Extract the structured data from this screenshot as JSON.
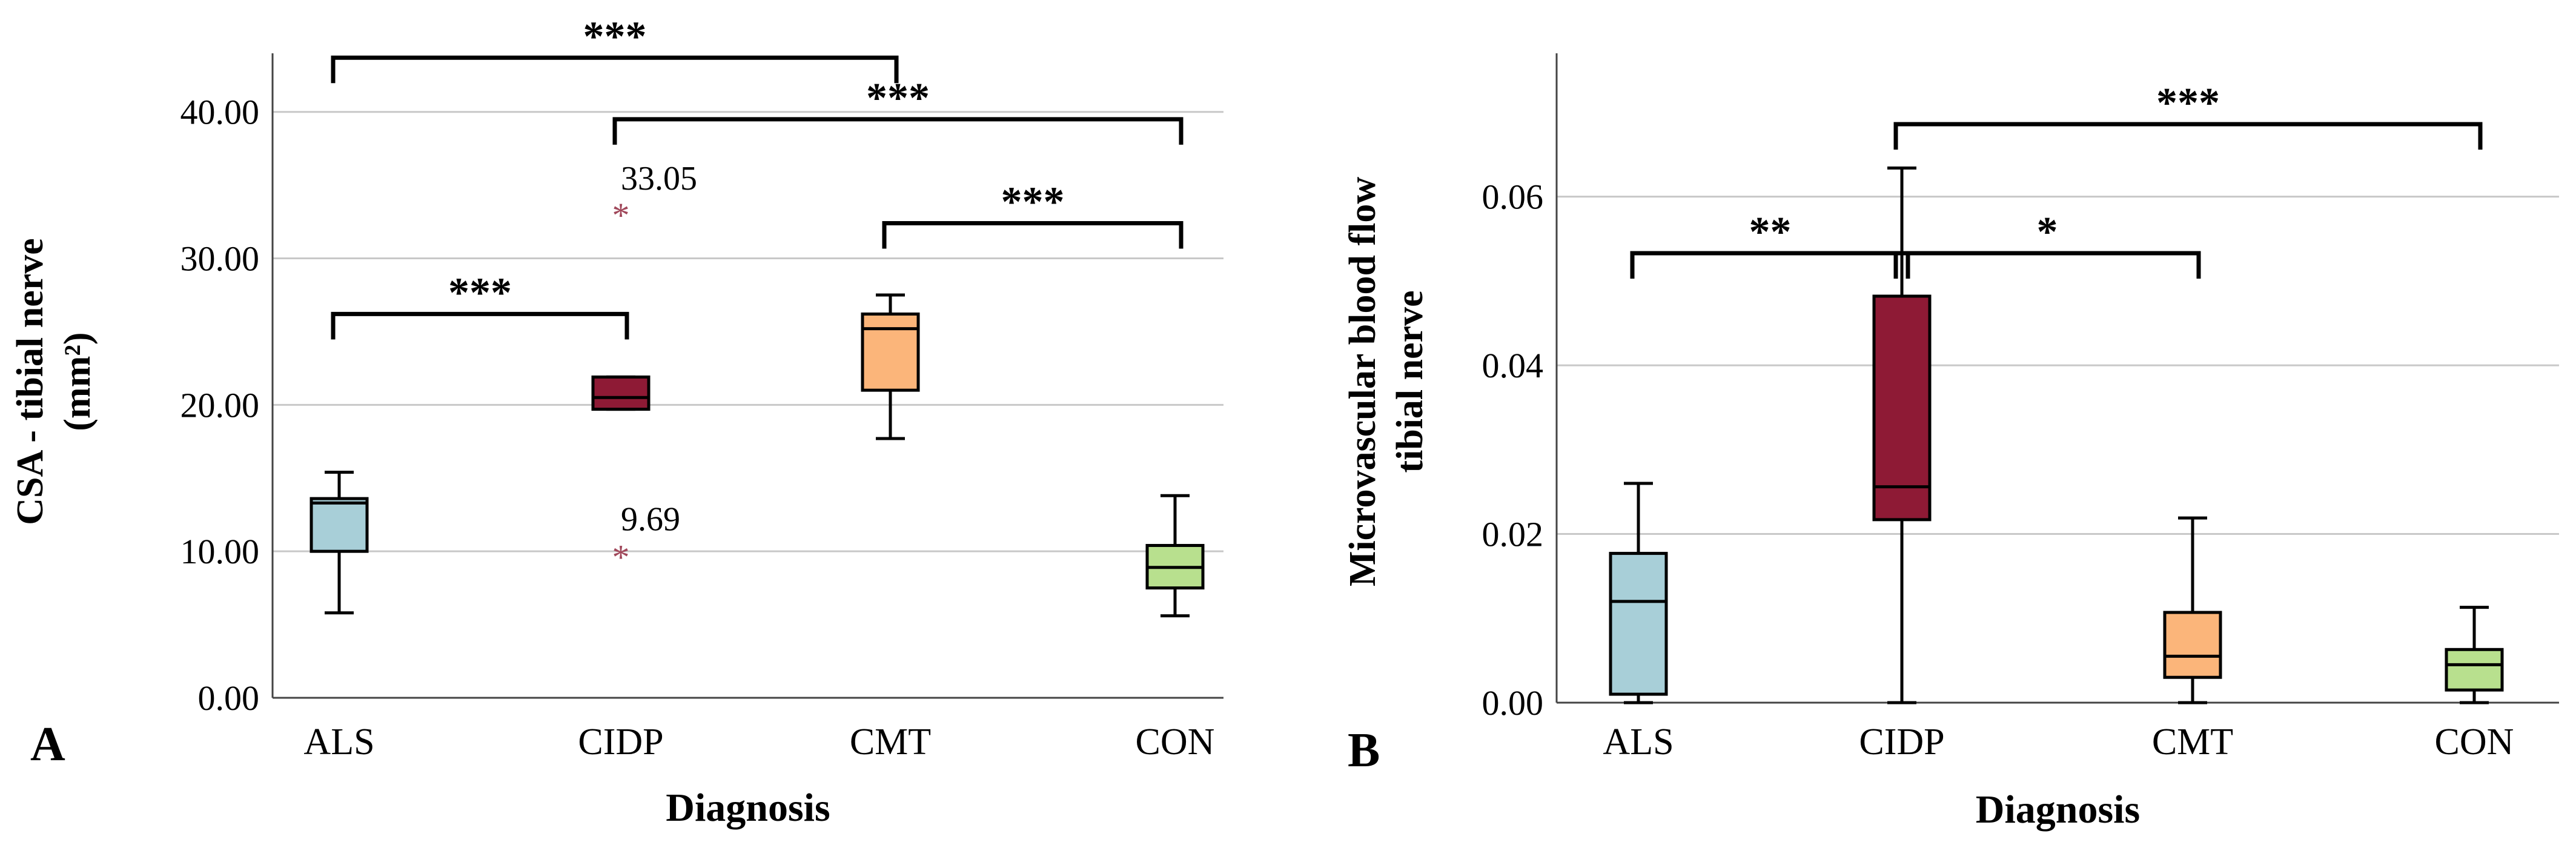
{
  "chart_data": [
    {
      "type": "box",
      "panel_label": "A",
      "xlabel": "Diagnosis",
      "ylabel_lines": [
        "CSA - tibial nerve",
        "(mm²)"
      ],
      "categories": [
        "ALS",
        "CIDP",
        "CMT",
        "CON"
      ],
      "ylim": [
        0,
        44
      ],
      "yticks": [
        0,
        10,
        20,
        30,
        40
      ],
      "ytick_labels": [
        "0.00",
        "10.00",
        "20.00",
        "30.00",
        "40.00"
      ],
      "grid": true,
      "boxes": [
        {
          "category": "ALS",
          "color": "#a8cfd8",
          "whisker_low": 5.8,
          "q1": 10.0,
          "median": 13.3,
          "q3": 13.6,
          "whisker_high": 15.4
        },
        {
          "category": "CIDP",
          "color": "#8e1a35",
          "whisker_low": 19.7,
          "q1": 19.7,
          "median": 20.5,
          "q3": 21.9,
          "whisker_high": 21.9
        },
        {
          "category": "CMT",
          "color": "#fbb57a",
          "whisker_low": 17.7,
          "q1": 21.0,
          "median": 25.2,
          "q3": 26.2,
          "whisker_high": 27.5
        },
        {
          "category": "CON",
          "color": "#b8e08e",
          "whisker_low": 5.6,
          "q1": 7.5,
          "median": 8.9,
          "q3": 10.4,
          "whisker_high": 13.8
        }
      ],
      "outliers": [
        {
          "category": "CIDP",
          "value": 33.05,
          "label": "33.05"
        },
        {
          "category": "CIDP",
          "value": 9.69,
          "label": "9.69"
        }
      ],
      "significance": [
        {
          "from": "ALS",
          "to": "CMT",
          "y": 43.7,
          "label": "***"
        },
        {
          "from": "CIDP",
          "to": "CON",
          "y": 39.5,
          "label": "***"
        },
        {
          "from": "CMT",
          "to": "CON",
          "y": 32.4,
          "label": "***"
        },
        {
          "from": "ALS",
          "to": "CIDP",
          "y": 26.2,
          "label": "***"
        }
      ]
    },
    {
      "type": "box",
      "panel_label": "B",
      "xlabel": "Diagnosis",
      "ylabel_lines": [
        "Microvascular blood flow",
        "tibial nerve"
      ],
      "categories": [
        "ALS",
        "CIDP",
        "CMT",
        "CON"
      ],
      "ylim": [
        0,
        0.077
      ],
      "yticks": [
        0,
        0.02,
        0.04,
        0.06
      ],
      "ytick_labels": [
        "0.00",
        "0.02",
        "0.04",
        "0.06"
      ],
      "grid": true,
      "boxes": [
        {
          "category": "ALS",
          "color": "#a8cfd8",
          "whisker_low": 0.0,
          "q1": 0.001,
          "median": 0.012,
          "q3": 0.0177,
          "whisker_high": 0.026
        },
        {
          "category": "CIDP",
          "color": "#8e1a35",
          "whisker_low": 0.0,
          "q1": 0.0217,
          "median": 0.0256,
          "q3": 0.0482,
          "whisker_high": 0.0634
        },
        {
          "category": "CMT",
          "color": "#fbb57a",
          "whisker_low": 0.0,
          "q1": 0.003,
          "median": 0.0055,
          "q3": 0.0107,
          "whisker_high": 0.0219
        },
        {
          "category": "CON",
          "color": "#b8e08e",
          "whisker_low": 0.0,
          "q1": 0.0015,
          "median": 0.0045,
          "q3": 0.0063,
          "whisker_high": 0.0113
        }
      ],
      "outliers": [],
      "significance": [
        {
          "from": "CIDP",
          "to": "CON",
          "y": 0.0686,
          "label": "***"
        },
        {
          "from": "ALS",
          "to": "CIDP",
          "y": 0.0533,
          "label": "**"
        },
        {
          "from": "CIDP",
          "to": "CMT",
          "y": 0.0533,
          "label": "*"
        }
      ]
    }
  ]
}
